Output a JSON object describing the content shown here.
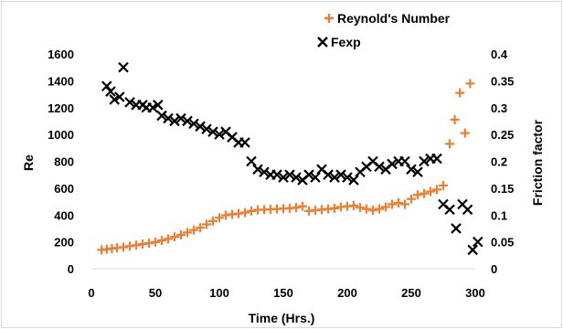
{
  "chart_data": {
    "type": "scatter",
    "xlabel": "Time (Hrs.)",
    "ylabel": "Re",
    "y2label": "Friction factor",
    "xlim": [
      0,
      300
    ],
    "ylim": [
      0,
      1600
    ],
    "y2lim": [
      0,
      0.4
    ],
    "xticks": [
      "0",
      "50",
      "100",
      "150",
      "200",
      "250",
      "300"
    ],
    "yticks": [
      "0",
      "200",
      "400",
      "600",
      "800",
      "1000",
      "1200",
      "1400",
      "1600"
    ],
    "y2ticks": [
      "0",
      "0.05",
      "0.1",
      "0.15",
      "0.2",
      "0.25",
      "0.3",
      "0.35",
      "0.4"
    ],
    "grid": false,
    "legend_position": "top-right",
    "series": [
      {
        "name": "Reynold's Number",
        "axis": "left",
        "marker": "plus",
        "color": "#ED7D31",
        "points": [
          [
            8,
            140
          ],
          [
            12,
            145
          ],
          [
            16,
            150
          ],
          [
            20,
            155
          ],
          [
            25,
            160
          ],
          [
            30,
            168
          ],
          [
            35,
            175
          ],
          [
            40,
            183
          ],
          [
            45,
            190
          ],
          [
            50,
            198
          ],
          [
            55,
            210
          ],
          [
            60,
            222
          ],
          [
            65,
            237
          ],
          [
            70,
            252
          ],
          [
            75,
            270
          ],
          [
            80,
            288
          ],
          [
            85,
            305
          ],
          [
            90,
            330
          ],
          [
            95,
            355
          ],
          [
            100,
            380
          ],
          [
            105,
            398
          ],
          [
            110,
            405
          ],
          [
            115,
            410
          ],
          [
            120,
            418
          ],
          [
            125,
            430
          ],
          [
            130,
            438
          ],
          [
            135,
            440
          ],
          [
            140,
            442
          ],
          [
            145,
            445
          ],
          [
            150,
            448
          ],
          [
            155,
            450
          ],
          [
            160,
            455
          ],
          [
            165,
            465
          ],
          [
            170,
            430
          ],
          [
            175,
            435
          ],
          [
            180,
            440
          ],
          [
            185,
            445
          ],
          [
            190,
            450
          ],
          [
            195,
            460
          ],
          [
            200,
            465
          ],
          [
            205,
            470
          ],
          [
            210,
            455
          ],
          [
            215,
            445
          ],
          [
            220,
            435
          ],
          [
            225,
            445
          ],
          [
            230,
            460
          ],
          [
            235,
            480
          ],
          [
            240,
            490
          ],
          [
            245,
            480
          ],
          [
            250,
            520
          ],
          [
            255,
            550
          ],
          [
            260,
            560
          ],
          [
            265,
            575
          ],
          [
            270,
            590
          ],
          [
            275,
            620
          ],
          [
            280,
            930
          ],
          [
            284,
            1110
          ],
          [
            288,
            1310
          ],
          [
            292,
            1010
          ],
          [
            296,
            1380
          ]
        ]
      },
      {
        "name": "Fexp",
        "axis": "right",
        "marker": "x",
        "color": "#000000",
        "points": [
          [
            12,
            0.34
          ],
          [
            15,
            0.33
          ],
          [
            18,
            0.315
          ],
          [
            22,
            0.32
          ],
          [
            25,
            0.375
          ],
          [
            30,
            0.31
          ],
          [
            35,
            0.305
          ],
          [
            40,
            0.305
          ],
          [
            43,
            0.3
          ],
          [
            48,
            0.3
          ],
          [
            52,
            0.305
          ],
          [
            55,
            0.285
          ],
          [
            60,
            0.28
          ],
          [
            65,
            0.275
          ],
          [
            70,
            0.28
          ],
          [
            75,
            0.275
          ],
          [
            80,
            0.27
          ],
          [
            85,
            0.265
          ],
          [
            90,
            0.26
          ],
          [
            95,
            0.255
          ],
          [
            100,
            0.25
          ],
          [
            105,
            0.255
          ],
          [
            110,
            0.245
          ],
          [
            115,
            0.235
          ],
          [
            120,
            0.235
          ],
          [
            125,
            0.2
          ],
          [
            130,
            0.185
          ],
          [
            135,
            0.18
          ],
          [
            140,
            0.175
          ],
          [
            145,
            0.175
          ],
          [
            150,
            0.17
          ],
          [
            155,
            0.175
          ],
          [
            160,
            0.17
          ],
          [
            165,
            0.165
          ],
          [
            170,
            0.175
          ],
          [
            175,
            0.17
          ],
          [
            180,
            0.185
          ],
          [
            185,
            0.175
          ],
          [
            190,
            0.17
          ],
          [
            195,
            0.175
          ],
          [
            200,
            0.17
          ],
          [
            205,
            0.165
          ],
          [
            210,
            0.18
          ],
          [
            215,
            0.19
          ],
          [
            220,
            0.2
          ],
          [
            225,
            0.19
          ],
          [
            230,
            0.185
          ],
          [
            235,
            0.195
          ],
          [
            240,
            0.2
          ],
          [
            245,
            0.2
          ],
          [
            250,
            0.185
          ],
          [
            255,
            0.18
          ],
          [
            260,
            0.2
          ],
          [
            265,
            0.205
          ],
          [
            270,
            0.205
          ],
          [
            275,
            0.12
          ],
          [
            280,
            0.11
          ],
          [
            285,
            0.075
          ],
          [
            290,
            0.12
          ],
          [
            294,
            0.11
          ],
          [
            298,
            0.035
          ],
          [
            302,
            0.05
          ]
        ]
      }
    ]
  }
}
